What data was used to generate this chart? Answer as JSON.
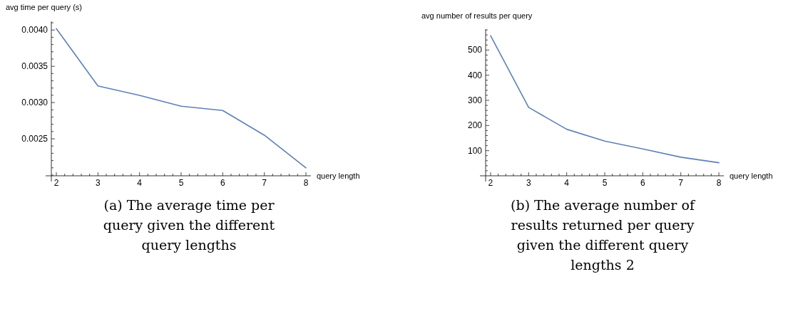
{
  "chart_data": [
    {
      "type": "line",
      "xlabel": "query length",
      "ylabel": "avg time per query (s)",
      "annotations": [
        "(a) The average time per query given the different query lengths"
      ],
      "x": [
        2,
        3,
        4,
        5,
        6,
        7,
        8
      ],
      "series": [
        {
          "color": "#5e81b5",
          "values": [
            0.00402,
            0.00323,
            0.0031,
            0.00295,
            0.00289,
            0.00255,
            0.0021
          ]
        }
      ],
      "xlim": [
        1.88,
        8.12
      ],
      "ylim": [
        0.00199,
        0.00412
      ],
      "xticks": [
        2,
        {
          "value": 2.2,
          "label": null
        },
        {
          "value": 2.4,
          "label": null
        },
        {
          "value": 2.6,
          "label": null
        },
        {
          "value": 2.8,
          "label": null
        },
        3,
        {
          "value": 3.2,
          "label": null
        },
        {
          "value": 3.4,
          "label": null
        },
        {
          "value": 3.6,
          "label": null
        },
        {
          "value": 3.8,
          "label": null
        },
        4,
        {
          "value": 4.2,
          "label": null
        },
        {
          "value": 4.4,
          "label": null
        },
        {
          "value": 4.6,
          "label": null
        },
        {
          "value": 4.8,
          "label": null
        },
        5,
        {
          "value": 5.2,
          "label": null
        },
        {
          "value": 5.4,
          "label": null
        },
        {
          "value": 5.6,
          "label": null
        },
        {
          "value": 5.8,
          "label": null
        },
        6,
        {
          "value": 6.2,
          "label": null
        },
        {
          "value": 6.4,
          "label": null
        },
        {
          "value": 6.6,
          "label": null
        },
        {
          "value": 6.8,
          "label": null
        },
        7,
        {
          "value": 7.2,
          "label": null
        },
        {
          "value": 7.4,
          "label": null
        },
        {
          "value": 7.6,
          "label": null
        },
        {
          "value": 7.8,
          "label": null
        },
        8
      ],
      "yticks": [
        {
          "value": 0.002,
          "label": null
        },
        {
          "value": 0.0021,
          "label": null
        },
        {
          "value": 0.0022,
          "label": null
        },
        {
          "value": 0.0023,
          "label": null
        },
        {
          "value": 0.0024,
          "label": null
        },
        0.0025,
        {
          "value": 0.0026,
          "label": null
        },
        {
          "value": 0.0027,
          "label": null
        },
        {
          "value": 0.0028,
          "label": null
        },
        {
          "value": 0.0029,
          "label": null
        },
        {
          "value": 0.003,
          "label": "0.0030"
        },
        {
          "value": 0.0031,
          "label": null
        },
        {
          "value": 0.0032,
          "label": null
        },
        {
          "value": 0.0033,
          "label": null
        },
        {
          "value": 0.0034,
          "label": null
        },
        0.0035,
        {
          "value": 0.0036,
          "label": null
        },
        {
          "value": 0.0037,
          "label": null
        },
        {
          "value": 0.0038,
          "label": null
        },
        {
          "value": 0.0039,
          "label": null
        },
        {
          "value": 0.004,
          "label": "0.0040"
        },
        {
          "value": 0.0041,
          "label": null
        }
      ],
      "grid": false,
      "marker": "none",
      "line_style": "solid"
    },
    {
      "type": "line",
      "xlabel": "query length",
      "ylabel": "avg number of results per query",
      "annotations": [
        "(b) The average number of results returned per query given the different query lengths 2"
      ],
      "x": [
        2,
        3,
        4,
        5,
        6,
        7,
        8
      ],
      "series": [
        {
          "color": "#5e81b5",
          "values": [
            557,
            272,
            185,
            138,
            107,
            74,
            52
          ]
        }
      ],
      "xlim": [
        1.87,
        8.13
      ],
      "ylim": [
        0,
        583
      ],
      "xticks": [
        2,
        {
          "value": 2.2,
          "label": null
        },
        {
          "value": 2.4,
          "label": null
        },
        {
          "value": 2.6,
          "label": null
        },
        {
          "value": 2.8,
          "label": null
        },
        3,
        {
          "value": 3.2,
          "label": null
        },
        {
          "value": 3.4,
          "label": null
        },
        {
          "value": 3.6,
          "label": null
        },
        {
          "value": 3.8,
          "label": null
        },
        4,
        {
          "value": 4.2,
          "label": null
        },
        {
          "value": 4.4,
          "label": null
        },
        {
          "value": 4.6,
          "label": null
        },
        {
          "value": 4.8,
          "label": null
        },
        5,
        {
          "value": 5.2,
          "label": null
        },
        {
          "value": 5.4,
          "label": null
        },
        {
          "value": 5.6,
          "label": null
        },
        {
          "value": 5.8,
          "label": null
        },
        6,
        {
          "value": 6.2,
          "label": null
        },
        {
          "value": 6.4,
          "label": null
        },
        {
          "value": 6.6,
          "label": null
        },
        {
          "value": 6.8,
          "label": null
        },
        7,
        {
          "value": 7.2,
          "label": null
        },
        {
          "value": 7.4,
          "label": null
        },
        {
          "value": 7.6,
          "label": null
        },
        {
          "value": 7.8,
          "label": null
        },
        8
      ],
      "yticks": [
        {
          "value": 20,
          "label": null
        },
        {
          "value": 40,
          "label": null
        },
        {
          "value": 60,
          "label": null
        },
        {
          "value": 80,
          "label": null
        },
        100,
        {
          "value": 120,
          "label": null
        },
        {
          "value": 140,
          "label": null
        },
        {
          "value": 160,
          "label": null
        },
        {
          "value": 180,
          "label": null
        },
        200,
        {
          "value": 220,
          "label": null
        },
        {
          "value": 240,
          "label": null
        },
        {
          "value": 260,
          "label": null
        },
        {
          "value": 280,
          "label": null
        },
        300,
        {
          "value": 320,
          "label": null
        },
        {
          "value": 340,
          "label": null
        },
        {
          "value": 360,
          "label": null
        },
        {
          "value": 380,
          "label": null
        },
        400,
        {
          "value": 420,
          "label": null
        },
        {
          "value": 440,
          "label": null
        },
        {
          "value": 460,
          "label": null
        },
        {
          "value": 480,
          "label": null
        },
        500,
        {
          "value": 520,
          "label": null
        },
        {
          "value": 540,
          "label": null
        },
        {
          "value": 560,
          "label": null
        },
        {
          "value": 580,
          "label": null
        }
      ],
      "grid": false,
      "marker": "none",
      "line_style": "solid"
    }
  ]
}
